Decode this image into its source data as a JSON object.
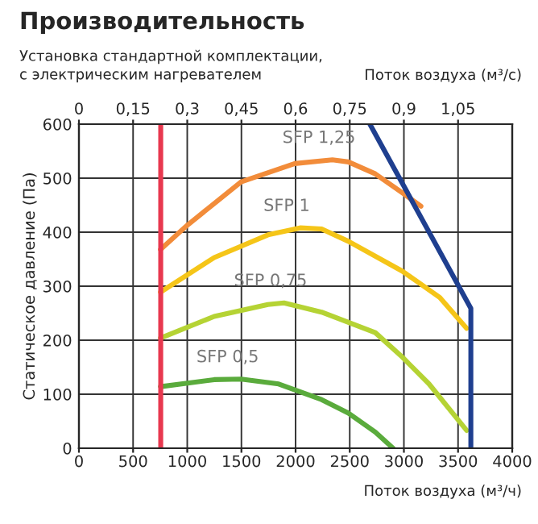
{
  "chart_data": {
    "type": "line",
    "title": "Производительность",
    "subtitle": "Установка стандартной комплектации,\nс электрическим нагревателем",
    "xlabel": "Поток воздуха (м³/ч)",
    "x2label": "Поток воздуха (м³/с)",
    "ylabel": "Статическое давление (Па)",
    "xlim": [
      0,
      4000
    ],
    "xticks": [
      0,
      500,
      1000,
      1500,
      2000,
      2500,
      3000,
      3500,
      4000
    ],
    "x2lim": [
      0,
      1.2
    ],
    "x2ticks": [
      0,
      {
        "value": 0.15,
        "label": "0,15"
      },
      {
        "value": 0.3,
        "label": "0,3"
      },
      {
        "value": 0.45,
        "label": "0,45"
      },
      {
        "value": 0.6,
        "label": "0,6"
      },
      {
        "value": 0.75,
        "label": "0,75"
      },
      {
        "value": 0.9,
        "label": "0,9"
      },
      {
        "value": 1.05,
        "label": "1,05"
      }
    ],
    "ylim": [
      0,
      600
    ],
    "yticks": [
      0,
      100,
      200,
      300,
      400,
      500,
      600
    ],
    "grid": true,
    "legend": false,
    "marker": "none",
    "line_style": "solid",
    "series": [
      {
        "name": "SFP 1,25",
        "color": "#f28c3a",
        "x": [
          753,
          1001,
          1497,
          1993,
          2340,
          2488,
          2736,
          2984,
          3157
        ],
        "values": [
          368,
          413,
          493,
          527,
          534,
          530,
          508,
          473,
          448
        ]
      },
      {
        "name": "SFP 1",
        "color": "#f5c518",
        "x": [
          753,
          1249,
          1745,
          2042,
          2240,
          2488,
          2984,
          3331,
          3579
        ],
        "values": [
          289,
          353,
          395,
          408,
          406,
          383,
          328,
          279,
          222
        ]
      },
      {
        "name": "SFP 0,75",
        "color": "#b5d334",
        "x": [
          753,
          1249,
          1745,
          1893,
          2240,
          2736,
          2984,
          3232,
          3579
        ],
        "values": [
          204,
          244,
          266,
          269,
          252,
          214,
          169,
          119,
          33
        ]
      },
      {
        "name": "SFP 0,5",
        "color": "#5aab3c",
        "x": [
          753,
          1249,
          1497,
          1844,
          2240,
          2488,
          2736,
          2900
        ],
        "values": [
          114,
          127,
          128,
          119,
          90,
          65,
          30,
          0
        ]
      },
      {
        "color": "#e8384f",
        "x": [
          755,
          755
        ],
        "values": [
          0,
          600
        ]
      },
      {
        "color": "#1f3f8f",
        "x": [
          2686,
          3618,
          3618
        ],
        "values": [
          600,
          259,
          0
        ]
      }
    ]
  }
}
